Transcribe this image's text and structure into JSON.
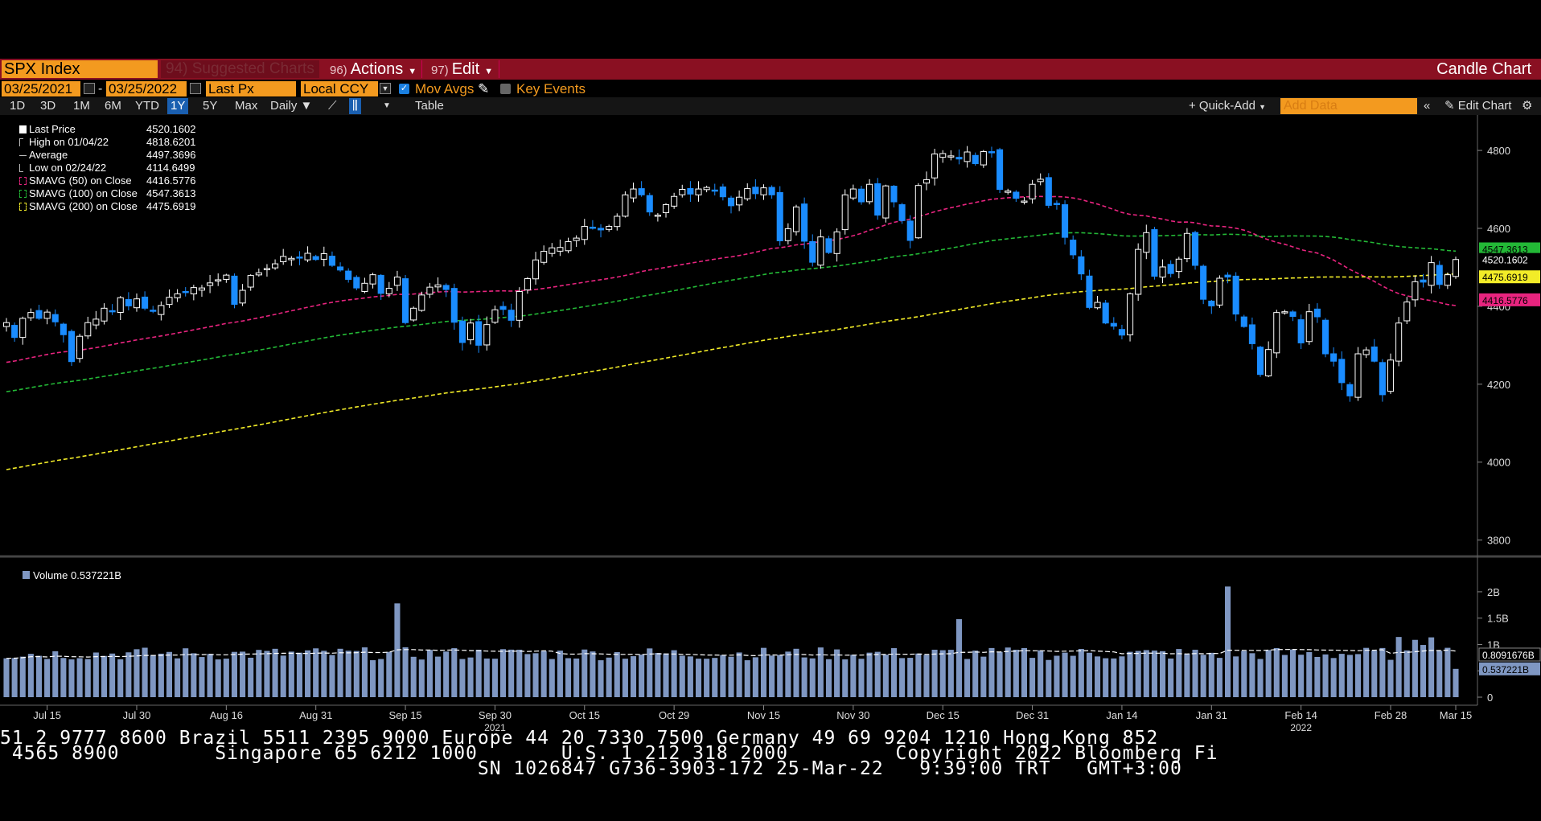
{
  "toolbar": {
    "ticker": "SPX Index",
    "suggested": "94) Suggested Charts",
    "actions_num": "96)",
    "actions": "Actions",
    "edit_num": "97)",
    "edit": "Edit",
    "chart_type": "Candle Chart"
  },
  "controls": {
    "start_date": "03/25/2021",
    "end_date": "03/25/2022",
    "field": "Last Px",
    "currency": "Local CCY",
    "mov_avgs": "Mov Avgs",
    "key_events": "Key Events"
  },
  "ranges": [
    "1D",
    "3D",
    "1M",
    "6M",
    "YTD",
    "1Y",
    "5Y",
    "Max"
  ],
  "period": "Daily",
  "table_label": "Table",
  "quick_add": "+ Quick-Add",
  "add_data_placeholder": "Add Data",
  "edit_chart": "Edit Chart",
  "legend": [
    {
      "name": "Last Price",
      "value": "4520.1602",
      "color": "#ffffff"
    },
    {
      "name": "High on 01/04/22",
      "value": "4818.6201",
      "color": "#bbbbbb"
    },
    {
      "name": "Average",
      "value": "4497.3696",
      "color": "#bbbbbb"
    },
    {
      "name": "Low on 02/24/22",
      "value": "4114.6499",
      "color": "#bbbbbb"
    },
    {
      "name": "SMAVG (50)  on Close",
      "value": "4416.5776",
      "color": "#e8247f"
    },
    {
      "name": "SMAVG (100)  on Close",
      "value": "4547.3613",
      "color": "#23b836"
    },
    {
      "name": "SMAVG (200)  on Close",
      "value": "4475.6919",
      "color": "#f2ec28"
    }
  ],
  "volume_legend": "Volume 0.537221B",
  "ticker_lines": [
    "51 2 9777 8600 Brazil 5511 2395 9000 Europe 44 20 7330 7500 Germany 49 69 9204 1210 Hong Kong 852",
    " 4565 8900        Singapore 65 6212 1000       U.S. 1 212 318 2000         Copyright 2022 Bloomberg Fi",
    "                                        SN 1026847 G736-3903-172 25-Mar-22   9:39:00 TRT   GMT+3:00"
  ],
  "chart_data": {
    "type": "candlestick",
    "price_axis": {
      "ticks": [
        3800,
        4000,
        4200,
        4400,
        4600,
        4800
      ],
      "min": 3760,
      "max": 4860
    },
    "volume_axis": {
      "ticks": [
        0,
        "0.5B",
        "1B",
        "1.5B",
        "2B"
      ],
      "min": 0,
      "max": 2.35
    },
    "x_labels": [
      "Jul 15",
      "Jul 30",
      "Aug 16",
      "Aug 31",
      "Sep 15",
      "Sep 30",
      "Oct 15",
      "Oct 29",
      "Nov 15",
      "Nov 30",
      "Dec 15",
      "Dec 31",
      "Jan 14",
      "Jan 31",
      "Feb 14",
      "Feb 28",
      "Mar 15"
    ],
    "year_labels": [
      {
        "label": "2021",
        "at": 5
      },
      {
        "label": "2022",
        "at": 14
      }
    ],
    "series_note": "Close values, one per trading day starting Jul 07 2021",
    "closes": [
      4358,
      4320,
      4369,
      4384,
      4369,
      4385,
      4360,
      4327,
      4258,
      4323,
      4358,
      4367,
      4395,
      4387,
      4422,
      4401,
      4419,
      4395,
      4387,
      4402,
      4423,
      4432,
      4436,
      4448,
      4447,
      4460,
      4468,
      4480,
      4405,
      4441,
      4479,
      4486,
      4497,
      4509,
      4528,
      4523,
      4524,
      4536,
      4520,
      4535,
      4505,
      4493,
      4469,
      4447,
      4459,
      4481,
      4433,
      4446,
      4475,
      4358,
      4395,
      4429,
      4449,
      4455,
      4443,
      4359,
      4307,
      4357,
      4300,
      4353,
      4391,
      4392,
      4364,
      4438,
      4471,
      4519,
      4541,
      4550,
      4551,
      4566,
      4575,
      4605,
      4603,
      4596,
      4605,
      4631,
      4686,
      4701,
      4686,
      4642,
      4634,
      4661,
      4682,
      4700,
      4688,
      4701,
      4705,
      4698,
      4681,
      4658,
      4680,
      4702,
      4689,
      4704,
      4686,
      4568,
      4599,
      4655,
      4567,
      4513,
      4578,
      4538,
      4591,
      4686,
      4701,
      4668,
      4713,
      4634,
      4709,
      4668,
      4620,
      4569,
      4710,
      4725,
      4791,
      4792,
      4786,
      4778,
      4796,
      4766,
      4797,
      4794,
      4700,
      4696,
      4677,
      4670,
      4713,
      4726,
      4659,
      4662,
      4577,
      4532,
      4483,
      4397,
      4410,
      4357,
      4349,
      4326,
      4432,
      4546,
      4589,
      4477,
      4501,
      4484,
      4521,
      4587,
      4505,
      4418,
      4401,
      4472,
      4475,
      4380,
      4348,
      4304,
      4225,
      4289,
      4384,
      4386,
      4374,
      4306,
      4386,
      4373,
      4278,
      4259,
      4204,
      4170,
      4278,
      4288,
      4259,
      4173,
      4262,
      4357,
      4411,
      4463,
      4462,
      4512,
      4456,
      4481,
      4520
    ],
    "last_price": 4520.1602,
    "sma50_last": 4416.5776,
    "sma100_last": 4547.3613,
    "sma200_last": 4475.6919,
    "volume_last": "0.537221B",
    "volume_avg_last": "0.8091676B",
    "colors": {
      "up": "#000000",
      "down": "#1a8cff",
      "sma50": "#e8247f",
      "sma100": "#23b836",
      "sma200": "#f2ec28",
      "volume": "#7f97c2"
    }
  }
}
